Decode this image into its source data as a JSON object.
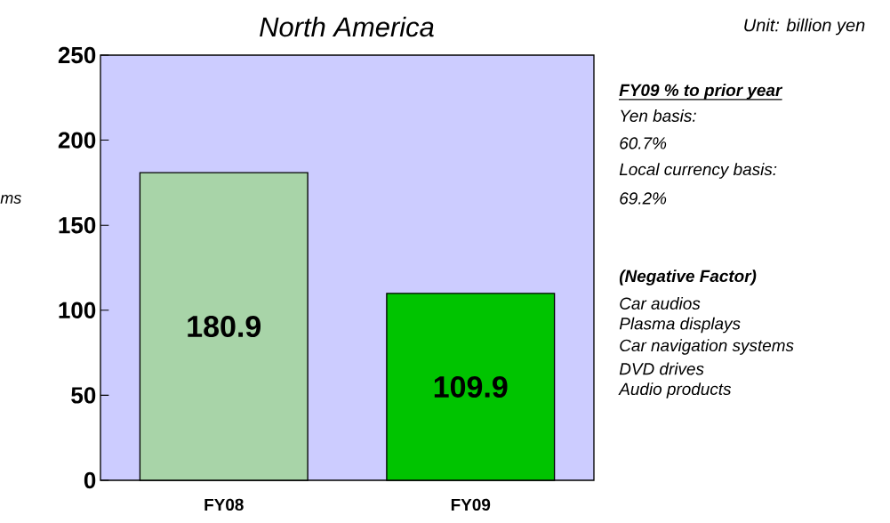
{
  "chart_data": {
    "type": "bar",
    "title": "North America",
    "categories": [
      "FY08",
      "FY09"
    ],
    "values": [
      180.9,
      109.9
    ],
    "colors": [
      "#a8d4a8",
      "#00c400"
    ],
    "data_labels": true,
    "ylim": [
      0,
      250
    ],
    "yticks": [
      0,
      50,
      100,
      150,
      200,
      250
    ],
    "annotations": [
      "Unit: billion yen",
      "ms",
      "FY09 % to prior year",
      "Yen basis:",
      "60.7%",
      "Local currency basis:",
      "69.2%",
      "(Negative Factor)",
      "Car audios",
      "Plasma displays",
      "Car navigation systems",
      "DVD drives",
      "Audio products"
    ]
  }
}
